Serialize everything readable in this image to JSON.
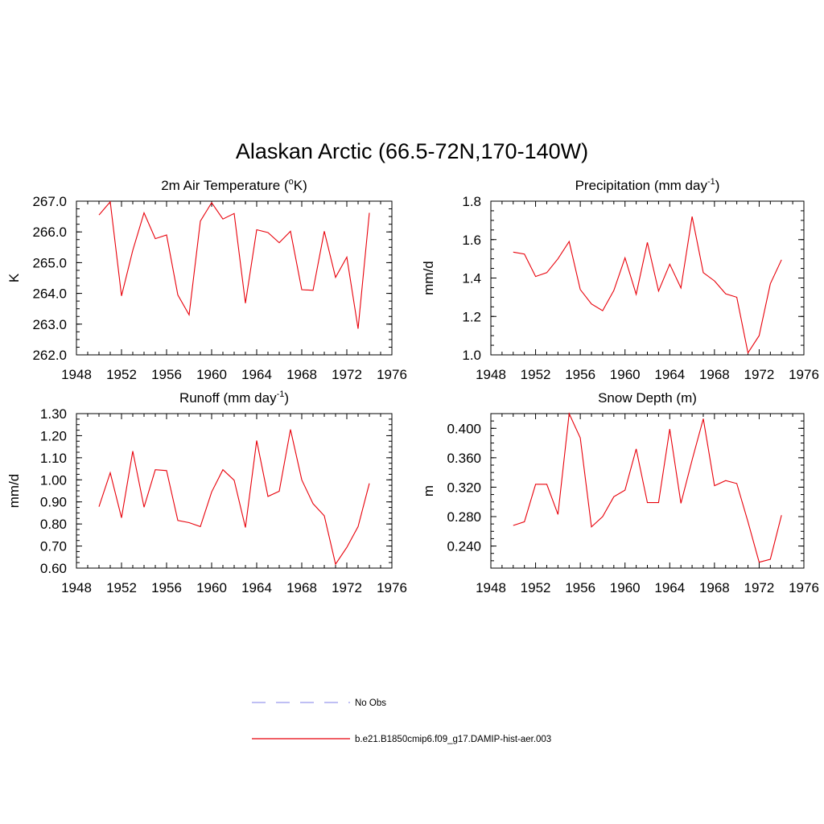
{
  "title": "Alaskan Arctic (66.5-72N,170-140W)",
  "legend": {
    "items": [
      {
        "label": "No Obs",
        "color": "#9999ee",
        "style": "dashed"
      },
      {
        "label": "b.e21.B1850cmip6.f09_g17.DAMIP-hist-aer.003",
        "color": "#e8000a",
        "style": "solid"
      }
    ]
  },
  "chart_data": [
    {
      "type": "line",
      "title": "2m Air Temperature (",
      "title_sup": "o",
      "title_after": "K)",
      "ylabel": "K",
      "xlim": [
        1948,
        1976
      ],
      "xticks": [
        1948,
        1952,
        1956,
        1960,
        1964,
        1968,
        1972,
        1976
      ],
      "ylim": [
        262.0,
        267.0
      ],
      "yticks": [
        262.0,
        263.0,
        264.0,
        265.0,
        266.0,
        267.0
      ],
      "ytick_labels": [
        "262.0",
        "263.0",
        "264.0",
        "265.0",
        "266.0",
        "267.0"
      ],
      "series": [
        {
          "color": "#e8000a",
          "x": [
            1950,
            1951,
            1952,
            1953,
            1954,
            1955,
            1956,
            1957,
            1958,
            1959,
            1960,
            1961,
            1962,
            1963,
            1964,
            1965,
            1966,
            1967,
            1968,
            1969,
            1970,
            1971,
            1972,
            1973,
            1974
          ],
          "y": [
            266.55,
            266.98,
            263.92,
            265.4,
            266.62,
            265.78,
            265.9,
            263.95,
            263.3,
            266.35,
            266.95,
            266.42,
            266.6,
            263.68,
            266.07,
            265.98,
            265.65,
            266.02,
            264.12,
            264.1,
            266.02,
            264.52,
            265.18,
            262.85,
            266.62
          ]
        }
      ]
    },
    {
      "type": "line",
      "title": "Precipitation (mm day",
      "title_sup": "-1",
      "title_after": ")",
      "ylabel": "mm/d",
      "xlim": [
        1948,
        1976
      ],
      "xticks": [
        1948,
        1952,
        1956,
        1960,
        1964,
        1968,
        1972,
        1976
      ],
      "ylim": [
        1.0,
        1.8
      ],
      "yticks": [
        1.0,
        1.2,
        1.4,
        1.6,
        1.8
      ],
      "ytick_labels": [
        "1.0",
        "1.2",
        "1.4",
        "1.6",
        "1.8"
      ],
      "series": [
        {
          "color": "#e8000a",
          "x": [
            1950,
            1951,
            1952,
            1953,
            1954,
            1955,
            1956,
            1957,
            1958,
            1959,
            1960,
            1961,
            1962,
            1963,
            1964,
            1965,
            1966,
            1967,
            1968,
            1969,
            1970,
            1971,
            1972,
            1973,
            1974
          ],
          "y": [
            1.535,
            1.525,
            1.408,
            1.428,
            1.5,
            1.59,
            1.34,
            1.265,
            1.23,
            1.335,
            1.505,
            1.315,
            1.585,
            1.332,
            1.472,
            1.348,
            1.72,
            1.428,
            1.385,
            1.318,
            1.3,
            1.01,
            1.1,
            1.37,
            1.495
          ]
        }
      ]
    },
    {
      "type": "line",
      "title": "Runoff (mm day",
      "title_sup": "-1",
      "title_after": ")",
      "ylabel": "mm/d",
      "xlim": [
        1948,
        1976
      ],
      "xticks": [
        1948,
        1952,
        1956,
        1960,
        1964,
        1968,
        1972,
        1976
      ],
      "ylim": [
        0.6,
        1.3
      ],
      "yticks": [
        0.6,
        0.7,
        0.8,
        0.9,
        1.0,
        1.1,
        1.2,
        1.3
      ],
      "ytick_labels": [
        "0.60",
        "0.70",
        "0.80",
        "0.90",
        "1.00",
        "1.10",
        "1.20",
        "1.30"
      ],
      "series": [
        {
          "color": "#e8000a",
          "x": [
            1950,
            1951,
            1952,
            1953,
            1954,
            1955,
            1956,
            1957,
            1958,
            1959,
            1960,
            1961,
            1962,
            1963,
            1964,
            1965,
            1966,
            1967,
            1968,
            1969,
            1970,
            1971,
            1972,
            1973,
            1974
          ],
          "y": [
            0.878,
            1.032,
            0.828,
            1.13,
            0.876,
            1.046,
            1.042,
            0.816,
            0.806,
            0.788,
            0.945,
            1.046,
            0.998,
            0.784,
            1.178,
            0.925,
            0.948,
            1.228,
            1.0,
            0.892,
            0.837,
            0.618,
            0.694,
            0.788,
            0.984
          ]
        }
      ]
    },
    {
      "type": "line",
      "title": "Snow Depth (m)",
      "title_sup": "",
      "title_after": "",
      "ylabel": "m",
      "xlim": [
        1948,
        1976
      ],
      "xticks": [
        1948,
        1952,
        1956,
        1960,
        1964,
        1968,
        1972,
        1976
      ],
      "ylim": [
        0.21,
        0.42
      ],
      "yticks": [
        0.24,
        0.28,
        0.32,
        0.36,
        0.4
      ],
      "ytick_labels": [
        "0.240",
        "0.280",
        "0.320",
        "0.360",
        "0.400"
      ],
      "series": [
        {
          "color": "#e8000a",
          "x": [
            1950,
            1951,
            1952,
            1953,
            1954,
            1955,
            1956,
            1957,
            1958,
            1959,
            1960,
            1961,
            1962,
            1963,
            1964,
            1965,
            1966,
            1967,
            1968,
            1969,
            1970,
            1971,
            1972,
            1973,
            1974
          ],
          "y": [
            0.268,
            0.273,
            0.324,
            0.324,
            0.283,
            0.42,
            0.387,
            0.266,
            0.28,
            0.307,
            0.316,
            0.372,
            0.299,
            0.299,
            0.399,
            0.298,
            0.357,
            0.413,
            0.322,
            0.329,
            0.325,
            0.273,
            0.218,
            0.222,
            0.282
          ]
        }
      ]
    }
  ]
}
